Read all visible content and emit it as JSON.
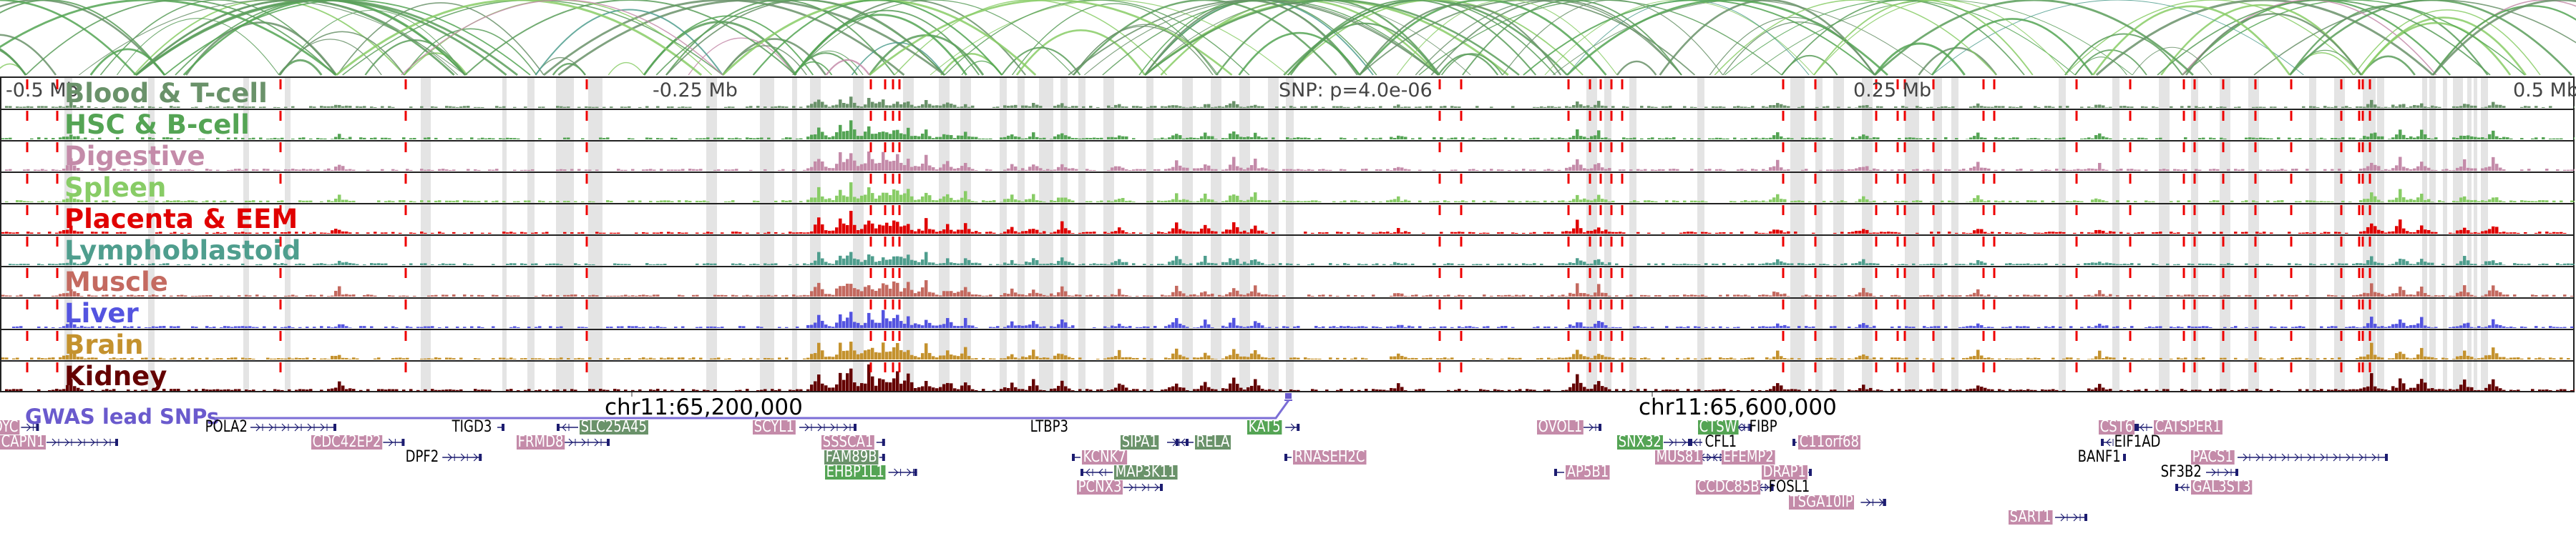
{
  "axis": {
    "left": "-0.5 Mb",
    "left_mid": "-0.25 Mb",
    "snp": "SNP: p=4.0e-06",
    "right_mid": "0.25 Mb",
    "right": "0.5 Mb"
  },
  "tracks": [
    {
      "label": "Blood & T-cell",
      "color": "#6a926a",
      "scale": 0.35
    },
    {
      "label": "HSC & B-cell",
      "color": "#54a454",
      "scale": 0.55
    },
    {
      "label": "Digestive",
      "color": "#c48ba9",
      "scale": 0.75
    },
    {
      "label": "Spleen",
      "color": "#88cc66",
      "scale": 0.6
    },
    {
      "label": "Placenta & EEM",
      "color": "#e00000",
      "scale": 0.7
    },
    {
      "label": "Lymphoblastoid",
      "color": "#4f9e8e",
      "scale": 0.6
    },
    {
      "label": "Muscle",
      "color": "#c46a60",
      "scale": 0.75
    },
    {
      "label": "Liver",
      "color": "#5454e0",
      "scale": 0.6
    },
    {
      "label": "Brain",
      "color": "#c4922e",
      "scale": 0.7
    },
    {
      "label": "Kidney",
      "color": "#640000",
      "scale": 0.85
    }
  ],
  "gwas": {
    "label": "GWAS lead SNPs",
    "color": "#6a5acd"
  },
  "chr_labels": [
    "chr11:65,200,000",
    "chr11:65,600,000"
  ],
  "genes": [
    {
      "name": "OYC",
      "style": "pink",
      "row": 0,
      "strand": "+"
    },
    {
      "name": "CAPN1",
      "style": "pink",
      "row": 1,
      "strand": "+"
    },
    {
      "name": "POLA2",
      "style": "plain",
      "row": 0,
      "strand": "+"
    },
    {
      "name": "CDC42EP2",
      "style": "pink",
      "row": 1,
      "strand": "+"
    },
    {
      "name": "DPF2",
      "style": "plain",
      "row": 2,
      "strand": "+"
    },
    {
      "name": "TIGD3",
      "style": "plain",
      "row": 0,
      "strand": "+"
    },
    {
      "name": "SLC25A45",
      "style": "dkgreen",
      "row": 0,
      "strand": "-"
    },
    {
      "name": "FRMD8",
      "style": "pink",
      "row": 1,
      "strand": "+"
    },
    {
      "name": "SCYL1",
      "style": "pink",
      "row": 0,
      "strand": "+"
    },
    {
      "name": "LTBP3",
      "style": "plain",
      "row": 0,
      "strand": "-"
    },
    {
      "name": "SSSCA1",
      "style": "pink",
      "row": 1,
      "strand": "+"
    },
    {
      "name": "FAM89B",
      "style": "dkgreen",
      "row": 2,
      "strand": "+"
    },
    {
      "name": "EHBP1L1",
      "style": "green",
      "row": 3,
      "strand": "+"
    },
    {
      "name": "KCNK7",
      "style": "pink",
      "row": 2,
      "strand": "-"
    },
    {
      "name": "MAP3K11",
      "style": "dkgreen",
      "row": 3,
      "strand": "-"
    },
    {
      "name": "PCNX3",
      "style": "pink",
      "row": 4,
      "strand": "+"
    },
    {
      "name": "SIPA1",
      "style": "dkgreen",
      "row": 1,
      "strand": "+"
    },
    {
      "name": "RELA",
      "style": "dkgreen",
      "row": 1,
      "strand": "-"
    },
    {
      "name": "KAT5",
      "style": "green",
      "row": 0,
      "strand": "+"
    },
    {
      "name": "RNASEH2C",
      "style": "pink",
      "row": 2,
      "strand": "-"
    },
    {
      "name": "OVOL1",
      "style": "pink",
      "row": 0,
      "strand": "+"
    },
    {
      "name": "AP5B1",
      "style": "pink",
      "row": 3,
      "strand": "-"
    },
    {
      "name": "SNX32",
      "style": "green",
      "row": 1,
      "strand": "+"
    },
    {
      "name": "CFL1",
      "style": "plain",
      "row": 1,
      "strand": "-"
    },
    {
      "name": "MUS81",
      "style": "pink",
      "row": 2,
      "strand": "+"
    },
    {
      "name": "EFEMP2",
      "style": "pink",
      "row": 2,
      "strand": "-"
    },
    {
      "name": "CTSW",
      "style": "green",
      "row": 0,
      "strand": "+"
    },
    {
      "name": "FIBP",
      "style": "plain",
      "row": 0,
      "strand": "-"
    },
    {
      "name": "CCDC85B",
      "style": "pink",
      "row": 4,
      "strand": "+"
    },
    {
      "name": "FOSL1",
      "style": "plain",
      "row": 4,
      "strand": "-"
    },
    {
      "name": "DRAP1",
      "style": "pink",
      "row": 3,
      "strand": "+"
    },
    {
      "name": "C11orf68",
      "style": "pink",
      "row": 1,
      "strand": "-"
    },
    {
      "name": "TSGA10IP",
      "style": "pink",
      "row": 5,
      "strand": "+"
    },
    {
      "name": "SART1",
      "style": "pink",
      "row": 6,
      "strand": "+"
    },
    {
      "name": "CST6",
      "style": "pink",
      "row": 0,
      "strand": "+"
    },
    {
      "name": "CATSPER1",
      "style": "pink",
      "row": 0,
      "strand": "-"
    },
    {
      "name": "EIF1AD",
      "style": "plain",
      "row": 1,
      "strand": "-"
    },
    {
      "name": "BANF1",
      "style": "plain",
      "row": 2,
      "strand": "+"
    },
    {
      "name": "PACS1",
      "style": "pink",
      "row": 2,
      "strand": "+"
    },
    {
      "name": "SF3B2",
      "style": "plain",
      "row": 3,
      "strand": "+"
    },
    {
      "name": "GAL3ST3",
      "style": "pink",
      "row": 4,
      "strand": "-"
    }
  ]
}
